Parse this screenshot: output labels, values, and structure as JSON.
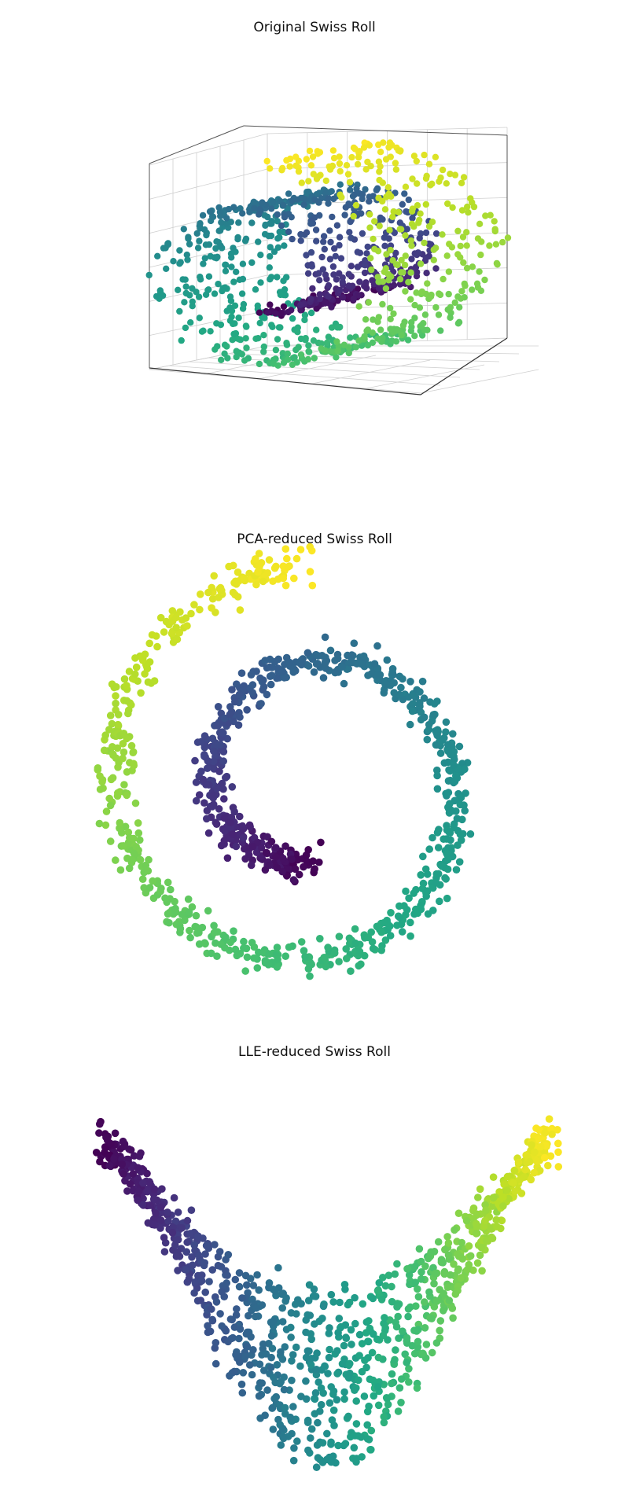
{
  "chart_data": [
    {
      "type": "scatter",
      "title": "Original Swiss Roll",
      "projection": "3d",
      "grid": true,
      "axis_ticks": "hidden",
      "colormap": "viridis",
      "color_encodes": "position along roll (t)",
      "t_range": [
        4.71,
        14.14
      ],
      "num_points": 1000,
      "x": "t*cos(t) + noise",
      "y": "uniform(0, 21)",
      "z": "t*sin(t) + noise"
    },
    {
      "type": "scatter",
      "title": "PCA-reduced Swiss Roll",
      "axes": "hidden",
      "colormap": "viridis",
      "color_encodes": "position along roll (t)",
      "t_range": [
        4.71,
        14.14
      ],
      "num_points": 1000,
      "xlim": [
        -13.5,
        16
      ],
      "ylim": [
        -13.5,
        12.5
      ]
    },
    {
      "type": "scatter",
      "title": "LLE-reduced Swiss Roll",
      "axes": "hidden",
      "colormap": "viridis",
      "color_encodes": "position along roll (t)",
      "t_range": [
        4.71,
        14.14
      ],
      "num_points": 1000,
      "shape": "V"
    }
  ]
}
